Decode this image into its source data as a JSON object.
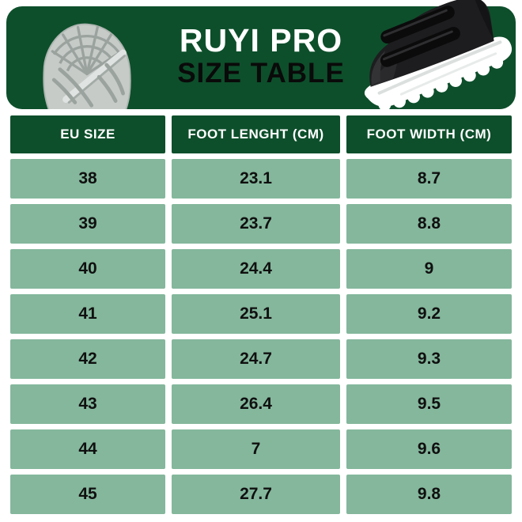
{
  "header": {
    "title": "RUYI PRO",
    "subtitle": "SIZE TABLE",
    "left_image": "shoe-sole-tread-photo",
    "right_image": "black-velcro-sneaker-photo"
  },
  "colors": {
    "banner_green": "#0d4f2b",
    "cell_green": "#84b79c",
    "title_color": "#ffffff",
    "subtitle_color": "#0a0a0a",
    "cell_text": "#101010",
    "page_background": "#ffffff",
    "sole_gray": "#c6cbc8",
    "sneaker_black": "#1d1d1f"
  },
  "table": {
    "columns": [
      "EU SIZE",
      "FOOT LENGHT (CM)",
      "FOOT WIDTH (CM)"
    ],
    "rows": [
      [
        "38",
        "23.1",
        "8.7"
      ],
      [
        "39",
        "23.7",
        "8.8"
      ],
      [
        "40",
        "24.4",
        "9"
      ],
      [
        "41",
        "25.1",
        "9.2"
      ],
      [
        "42",
        "24.7",
        "9.3"
      ],
      [
        "43",
        "26.4",
        "9.5"
      ],
      [
        "44",
        "7",
        "9.6"
      ],
      [
        "45",
        "27.7",
        "9.8"
      ]
    ]
  },
  "chart_data": {
    "type": "table",
    "title": "RUYI PRO SIZE TABLE",
    "columns": [
      "EU SIZE",
      "FOOT LENGHT (CM)",
      "FOOT WIDTH (CM)"
    ],
    "rows": [
      [
        38,
        23.1,
        8.7
      ],
      [
        39,
        23.7,
        8.8
      ],
      [
        40,
        24.4,
        9
      ],
      [
        41,
        25.1,
        9.2
      ],
      [
        42,
        24.7,
        9.3
      ],
      [
        43,
        26.4,
        9.5
      ],
      [
        44,
        7,
        9.6
      ],
      [
        45,
        27.7,
        9.8
      ]
    ]
  }
}
